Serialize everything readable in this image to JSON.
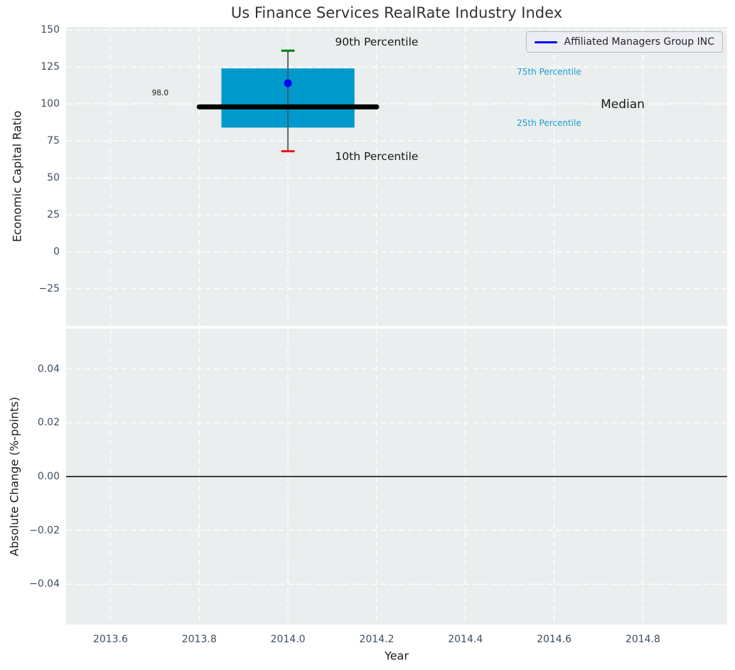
{
  "title": "Us Finance Services RealRate Industry Index",
  "legend": {
    "label": "Affiliated Managers Group INC",
    "line_color": "#0000ff"
  },
  "colors": {
    "figure_bg": "#ffffff",
    "plot_bg": "#eaeeef",
    "grid": "#ffffff",
    "box_fill": "#0099cc",
    "median_line": "#000000",
    "whisker": "#4d4d4d",
    "cap_top": "#008000",
    "cap_bottom": "#ee1111",
    "company_dot": "#0000ff",
    "tick_label": "#3d4e60",
    "axis_label": "#1a1a1a",
    "title_color": "#333333",
    "zero_line": "#000000"
  },
  "xticks": {
    "values": [
      2013.6,
      2013.8,
      2014.0,
      2014.2,
      2014.4,
      2014.6,
      2014.8
    ],
    "labels": [
      "2013.6",
      "2013.8",
      "2014.0",
      "2014.2",
      "2014.4",
      "2014.6",
      "2014.8"
    ]
  },
  "chart_data": [
    {
      "type": "box",
      "title": "Us Finance Services RealRate Industry Index",
      "ylabel": "Economic Capital Ratio",
      "xlim": [
        2013.5,
        2014.99
      ],
      "ylim": [
        -50,
        152
      ],
      "grid": "white-dashed",
      "ytick_values": [
        150,
        125,
        100,
        75,
        50,
        25,
        0,
        -25
      ],
      "ytick_labels": [
        "150",
        "125",
        "100",
        "75",
        "50",
        "25",
        "0",
        "−25"
      ],
      "box": {
        "x": 2014.0,
        "p10": 68,
        "p25": 84,
        "median": 98.0,
        "p75": 124,
        "p90": 136,
        "company_value": 114,
        "company_name": "Affiliated Managers Group INC",
        "box_half_width": 0.15,
        "median_half_width": 0.2,
        "cap_half_width": 0.015
      },
      "annotations": [
        {
          "text": "90th Percentile",
          "x": 2014.2,
          "y": 142.0,
          "size": 15.5,
          "color": "#1a1a1a",
          "anchor": "middle"
        },
        {
          "text": "10th Percentile",
          "x": 2014.2,
          "y": 64.5,
          "size": 15.5,
          "color": "#1a1a1a",
          "anchor": "middle"
        },
        {
          "text": "98.0",
          "x": 2013.712,
          "y": 107.5,
          "size": 10.5,
          "color": "#1a1a1a",
          "anchor": "middle"
        },
        {
          "text": "75th Percentile",
          "x": 2014.516,
          "y": 121.8,
          "size": 12,
          "color": "#1b9fd0",
          "anchor": "start"
        },
        {
          "text": "25th Percentile",
          "x": 2014.516,
          "y": 87.3,
          "size": 12,
          "color": "#1b9fd0",
          "anchor": "start"
        },
        {
          "text": "Median",
          "x": 2014.705,
          "y": 99.6,
          "size": 17,
          "color": "#1a1a1a",
          "anchor": "start"
        }
      ]
    },
    {
      "type": "line",
      "ylabel": "Absolute Change (%-points)",
      "xlabel": "Year",
      "xlim": [
        2013.5,
        2014.99
      ],
      "ylim": [
        -0.055,
        0.055
      ],
      "grid": "white-dashed",
      "ytick_values": [
        0.04,
        0.02,
        0.0,
        -0.02,
        -0.04
      ],
      "ytick_labels": [
        "0.04",
        "0.02",
        "0.00",
        "−0.02",
        "−0.04"
      ],
      "zero_line": 0.0,
      "series": [
        {
          "name": "Affiliated Managers Group INC",
          "x": [],
          "y": []
        }
      ]
    }
  ]
}
